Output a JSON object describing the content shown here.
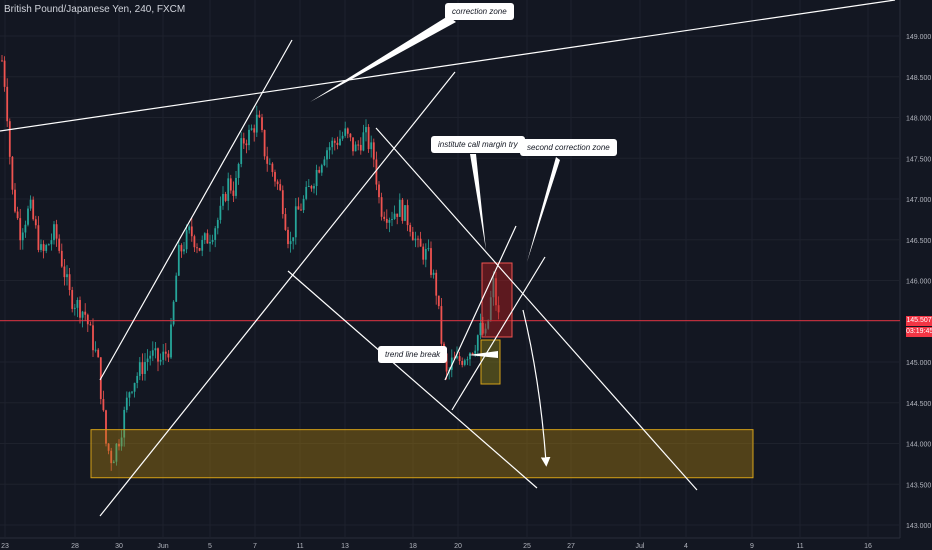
{
  "header": {
    "symbol": "British Pound/Japanese Yen, 240, FXCM"
  },
  "annotations": {
    "correction_zone": "correction zone",
    "institute_call": "institute call margin try",
    "second_correction": "second correction zone",
    "trend_line_break": "trend line break"
  },
  "price_tag": {
    "price": "145.507",
    "countdown": "03:19:45"
  },
  "colors": {
    "background": "#131722",
    "up": "#26a69a",
    "down": "#ef5350",
    "zone": "#b8860b",
    "grid": "#1e222d",
    "axis_text": "#b2b5be",
    "current_price": "#f23645"
  },
  "chart_data": {
    "type": "candlestick",
    "title": "British Pound/Japanese Yen, 240, FXCM",
    "y_tick_labels": [
      "149.000",
      "148.500",
      "148.000",
      "147.500",
      "147.000",
      "146.500",
      "146.000",
      "145.500",
      "145.000",
      "144.500",
      "144.000",
      "143.500",
      "143.000"
    ],
    "x_tick_labels": [
      "23",
      "28",
      "30",
      "Jun",
      "5",
      "7",
      "11",
      "13",
      "18",
      "20",
      "25",
      "27",
      "Jul",
      "4",
      "9",
      "11",
      "16"
    ],
    "ylim": [
      143.0,
      149.0
    ],
    "current_price": 145.507,
    "approx_path": [
      {
        "date": "2018-05-23",
        "close": 148.3
      },
      {
        "date": "2018-05-25",
        "close": 146.7
      },
      {
        "date": "2018-05-28",
        "close": 145.4
      },
      {
        "date": "2018-05-29",
        "close": 143.9
      },
      {
        "date": "2018-05-31",
        "close": 144.6
      },
      {
        "date": "2018-06-01",
        "close": 145.5
      },
      {
        "date": "2018-06-04",
        "close": 146.5
      },
      {
        "date": "2018-06-06",
        "close": 147.3
      },
      {
        "date": "2018-06-07",
        "close": 148.0
      },
      {
        "date": "2018-06-08",
        "close": 147.2
      },
      {
        "date": "2018-06-11",
        "close": 146.4
      },
      {
        "date": "2018-06-12",
        "close": 147.4
      },
      {
        "date": "2018-06-13",
        "close": 147.8
      },
      {
        "date": "2018-06-14",
        "close": 147.6
      },
      {
        "date": "2018-06-15",
        "close": 146.9
      },
      {
        "date": "2018-06-18",
        "close": 146.3
      },
      {
        "date": "2018-06-19",
        "close": 144.9
      },
      {
        "date": "2018-06-20",
        "close": 145.0
      },
      {
        "date": "2018-06-21",
        "close": 145.4
      },
      {
        "date": "2018-06-22",
        "close": 145.9
      },
      {
        "date": "2018-06-22",
        "close": 145.5
      }
    ]
  }
}
